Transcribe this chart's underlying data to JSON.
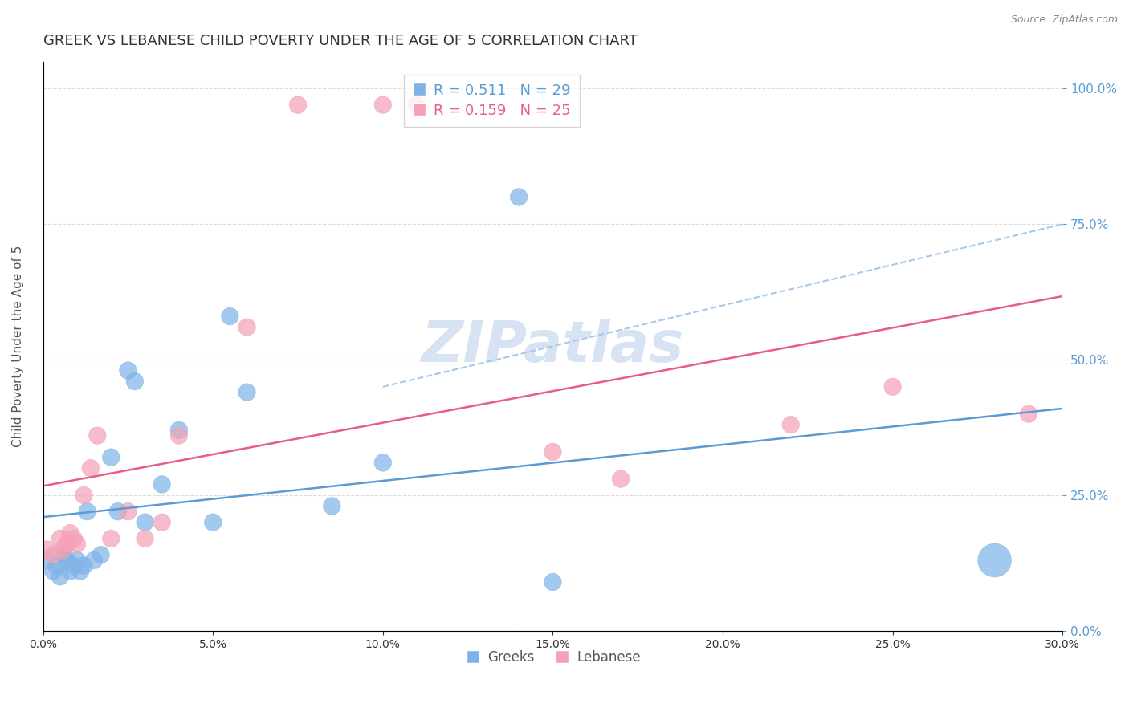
{
  "title": "GREEK VS LEBANESE CHILD POVERTY UNDER THE AGE OF 5 CORRELATION CHART",
  "source": "Source: ZipAtlas.com",
  "xlabel": "",
  "ylabel": "Child Poverty Under the Age of 5",
  "xlim": [
    0.0,
    0.3
  ],
  "ylim": [
    0.0,
    1.05
  ],
  "yticks": [
    0.0,
    0.25,
    0.5,
    0.75,
    1.0
  ],
  "xticks": [
    0.0,
    0.05,
    0.1,
    0.15,
    0.2,
    0.25,
    0.3
  ],
  "greek_R": 0.511,
  "greek_N": 29,
  "lebanese_R": 0.159,
  "lebanese_N": 25,
  "greek_color": "#7EB3E8",
  "lebanese_color": "#F4A0B5",
  "greek_line_color": "#5B9BD5",
  "lebanese_line_color": "#E85C8A",
  "dashed_line_color": "#A8C8E8",
  "watermark": "ZIPatlas",
  "watermark_color": "#D0DFF0",
  "legend_R_color": "#5B9BD5",
  "legend_N_color": "#E85C8A",
  "background_color": "#FFFFFF",
  "grid_color": "#CCCCCC",
  "right_axis_color": "#5B9BD5",
  "title_color": "#333333",
  "greek_x": [
    0.001,
    0.003,
    0.004,
    0.005,
    0.006,
    0.007,
    0.008,
    0.009,
    0.01,
    0.011,
    0.012,
    0.013,
    0.015,
    0.017,
    0.02,
    0.022,
    0.025,
    0.027,
    0.03,
    0.035,
    0.04,
    0.05,
    0.055,
    0.06,
    0.085,
    0.1,
    0.14,
    0.15,
    0.28
  ],
  "greek_y": [
    0.13,
    0.11,
    0.12,
    0.1,
    0.14,
    0.13,
    0.11,
    0.12,
    0.13,
    0.11,
    0.12,
    0.22,
    0.13,
    0.14,
    0.32,
    0.22,
    0.48,
    0.46,
    0.2,
    0.27,
    0.37,
    0.2,
    0.58,
    0.44,
    0.23,
    0.31,
    0.8,
    0.09,
    0.13
  ],
  "greek_sizes": [
    8,
    8,
    8,
    8,
    8,
    8,
    8,
    8,
    8,
    8,
    8,
    8,
    8,
    8,
    8,
    8,
    8,
    8,
    8,
    8,
    8,
    8,
    8,
    8,
    8,
    8,
    8,
    8,
    30
  ],
  "lebanese_x": [
    0.001,
    0.003,
    0.005,
    0.006,
    0.007,
    0.008,
    0.009,
    0.01,
    0.012,
    0.014,
    0.016,
    0.02,
    0.025,
    0.03,
    0.035,
    0.04,
    0.06,
    0.075,
    0.1,
    0.11,
    0.15,
    0.17,
    0.22,
    0.25,
    0.29
  ],
  "lebanese_y": [
    0.15,
    0.14,
    0.17,
    0.15,
    0.16,
    0.18,
    0.17,
    0.16,
    0.25,
    0.3,
    0.36,
    0.17,
    0.22,
    0.17,
    0.2,
    0.36,
    0.56,
    0.97,
    0.97,
    0.97,
    0.33,
    0.28,
    0.38,
    0.45,
    0.4
  ],
  "lebanese_sizes": [
    8,
    8,
    8,
    8,
    8,
    8,
    8,
    8,
    8,
    8,
    8,
    8,
    8,
    8,
    8,
    8,
    8,
    8,
    8,
    8,
    8,
    8,
    8,
    8,
    8
  ]
}
